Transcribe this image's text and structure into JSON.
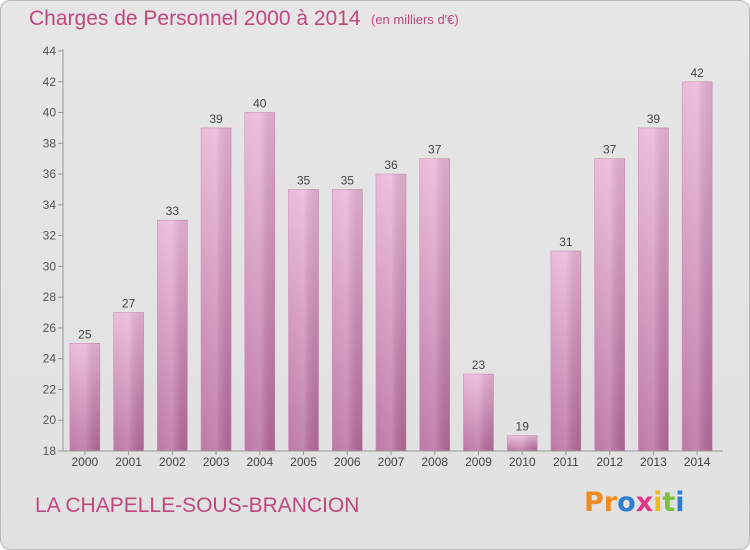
{
  "header": {
    "title": "Charges de Personnel 2000 à 2014",
    "unit": "(en milliers d'€)"
  },
  "footer": {
    "commune": "LA CHAPELLE-SOUS-BRANCION",
    "logo_letters": [
      "P",
      "r",
      "o",
      "x",
      "i",
      "t",
      "i"
    ],
    "logo_colors": [
      "#f08a1f",
      "#f08a1f",
      "#2e7fd1",
      "#e5358b",
      "#f0b81f",
      "#7cc142",
      "#2e7fd1"
    ]
  },
  "colors": {
    "accent": "#c0487f",
    "bar_top": "#eab4d6",
    "bar_bottom": "#b56a9b",
    "axis": "#999999"
  },
  "chart_data": {
    "type": "bar",
    "categories": [
      "2000",
      "2001",
      "2002",
      "2003",
      "2004",
      "2005",
      "2006",
      "2007",
      "2008",
      "2009",
      "2010",
      "2011",
      "2012",
      "2013",
      "2014"
    ],
    "values": [
      25,
      27,
      33,
      39,
      40,
      35,
      35,
      36,
      37,
      23,
      19,
      31,
      37,
      39,
      42
    ],
    "title": "Charges de Personnel 2000 à 2014",
    "subtitle": "(en milliers d'€)",
    "xlabel": "",
    "ylabel": "",
    "ylim": [
      18,
      44
    ],
    "yticks": [
      18,
      20,
      22,
      24,
      26,
      28,
      30,
      32,
      34,
      36,
      38,
      40,
      42,
      44
    ],
    "grid": "none",
    "data_labels": true
  }
}
